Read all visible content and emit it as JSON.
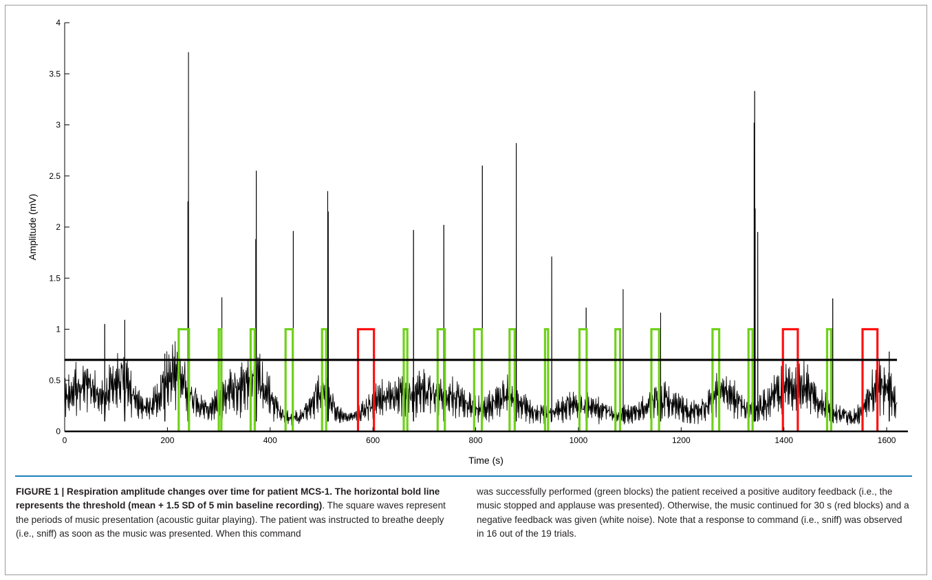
{
  "chart_data": {
    "type": "line",
    "title": "",
    "xlabel": "Time (s)",
    "ylabel": "Amplitude (mV)",
    "xlim": [
      0,
      1640
    ],
    "ylim": [
      0,
      4
    ],
    "x_ticks": [
      "0",
      "200",
      "400",
      "600",
      "800",
      "1000",
      "1200",
      "1400",
      "1600"
    ],
    "y_ticks": [
      "0",
      "0.5",
      "1",
      "1.5",
      "2",
      "2.5",
      "3",
      "3.5",
      "4"
    ],
    "grid": false,
    "legend": "none",
    "threshold": {
      "value": 0.7,
      "x_range": [
        0,
        1620
      ],
      "color": "#000000"
    },
    "signal": {
      "color": "#000000",
      "x_range": [
        0,
        1620
      ],
      "peaks": [
        {
          "x": 78,
          "y": 1.05
        },
        {
          "x": 117,
          "y": 1.09
        },
        {
          "x": 195,
          "y": 0.76
        },
        {
          "x": 241,
          "y": 3.71
        },
        {
          "x": 240,
          "y": 2.25
        },
        {
          "x": 306,
          "y": 1.31
        },
        {
          "x": 373,
          "y": 2.55
        },
        {
          "x": 372,
          "y": 1.88
        },
        {
          "x": 445,
          "y": 1.96
        },
        {
          "x": 512,
          "y": 2.35
        },
        {
          "x": 513,
          "y": 2.15
        },
        {
          "x": 679,
          "y": 1.97
        },
        {
          "x": 738,
          "y": 2.02
        },
        {
          "x": 813,
          "y": 2.6
        },
        {
          "x": 879,
          "y": 2.82
        },
        {
          "x": 948,
          "y": 1.71
        },
        {
          "x": 1015,
          "y": 1.21
        },
        {
          "x": 1087,
          "y": 1.39
        },
        {
          "x": 1160,
          "y": 1.16
        },
        {
          "x": 1343,
          "y": 3.33
        },
        {
          "x": 1342,
          "y": 3.02
        },
        {
          "x": 1344,
          "y": 2.18
        },
        {
          "x": 1349,
          "y": 1.95
        },
        {
          "x": 1495,
          "y": 1.3
        },
        {
          "x": 1605,
          "y": 0.78
        }
      ]
    },
    "series": [
      {
        "color": "#6fd11b",
        "blocks": [
          [
            222,
            242
          ],
          [
            300,
            305
          ],
          [
            362,
            370
          ],
          [
            430,
            444
          ],
          [
            501,
            509
          ],
          [
            660,
            667
          ],
          [
            726,
            740
          ],
          [
            797,
            812
          ],
          [
            866,
            876
          ],
          [
            935,
            941
          ],
          [
            1002,
            1016
          ],
          [
            1072,
            1081
          ],
          [
            1142,
            1157
          ],
          [
            1261,
            1274
          ],
          [
            1331,
            1339
          ],
          [
            1484,
            1492
          ]
        ]
      },
      {
        "color": "#ff0f0f",
        "blocks": [
          [
            571,
            602
          ],
          [
            1398,
            1427
          ],
          [
            1553,
            1582
          ]
        ]
      }
    ],
    "block_level": 1.0
  },
  "caption": {
    "bold_intro": "FIGURE 1 | Respiration amplitude changes over time for patient MCS-1. The horizontal bold line represents the threshold (mean + 1.5 SD of 5 min baseline recording)",
    "left_text": ". The square waves represent the periods of music presentation (acoustic guitar playing). The patient was instructed to breathe deeply (i.e., sniff) as soon as the music was presented. When this command",
    "right_text": "was successfully performed (green blocks) the patient received a positive auditory feedback (i.e., the music stopped and applause was presented). Otherwise, the music continued for 30 s (red blocks) and a negative feedback was given (white noise). Note that a response to command (i.e., sniff) was observed in 16 out of the 19 trials."
  }
}
